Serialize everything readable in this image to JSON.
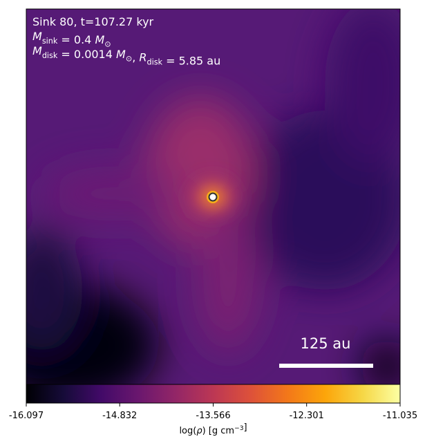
{
  "chart_data": {
    "type": "image",
    "annotations": [
      {
        "parts": [
          "Sink 80, t=107.27 kyr"
        ]
      },
      {
        "parts": [
          [
            "M",
            "sink"
          ],
          " = 0.4 ",
          [
            "M",
            "⊙"
          ]
        ]
      },
      {
        "parts": [
          [
            "M",
            "disk"
          ],
          " = 0.0014 ",
          [
            "M",
            "⊙"
          ],
          ", ",
          [
            "R",
            "disk"
          ],
          " = 5.85 au"
        ]
      }
    ],
    "scalebar": {
      "label": "125 au"
    },
    "colorbar": {
      "colormap": "inferno",
      "lim": [
        -16.097,
        -11.035
      ],
      "ticks": [
        -16.097,
        -14.832,
        -13.566,
        -12.301,
        -11.035
      ],
      "label": {
        "parts": [
          "log(",
          [
            "ρ"
          ],
          ") [g cm",
          [
            "",
            "−3",
            "sup"
          ],
          "]"
        ]
      }
    }
  }
}
